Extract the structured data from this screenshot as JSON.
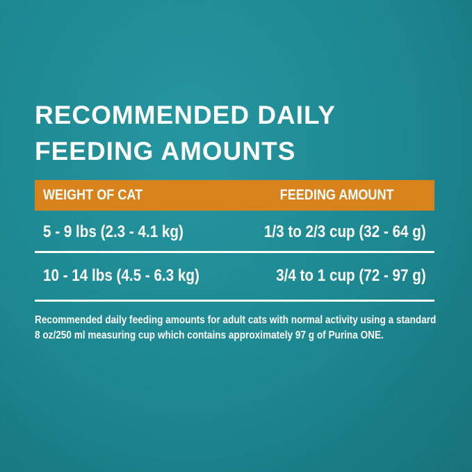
{
  "title": {
    "line1": "RECOMMENDED DAILY",
    "line2": "FEEDING AMOUNTS"
  },
  "table": {
    "headers": [
      "WEIGHT OF CAT",
      "FEEDING AMOUNT"
    ],
    "rows": [
      [
        "5 - 9 lbs (2.3 - 4.1 kg)",
        "1/3 to 2/3 cup (32 - 64 g)"
      ],
      [
        "10 - 14 lbs (4.5 - 6.3 kg)",
        "3/4 to 1 cup (72 - 97 g)"
      ]
    ]
  },
  "note": "Recommended daily feeding amounts for adult cats with normal activity using a standard 8 oz/250 ml measuring cup which contains approximately 97 g of Purina ONE.",
  "colors": {
    "background": "#1d8790",
    "header": "#d8821b",
    "text": "#ffffff"
  }
}
